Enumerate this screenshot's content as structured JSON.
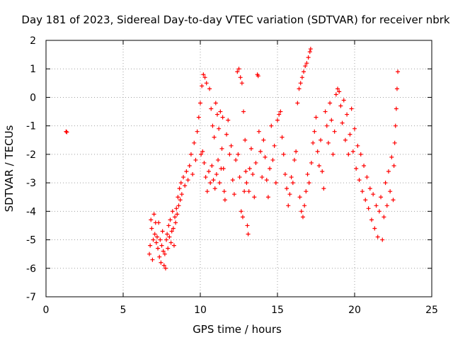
{
  "chart_data": {
    "type": "scatter",
    "title": "Day 181 of 2023, Sidereal Day-to-day VTEC variation (SDTVAR) for receiver nbrk",
    "xlabel": "GPS time / hours",
    "ylabel": "SDTVAR / TECUs",
    "xlim": [
      0,
      25
    ],
    "ylim": [
      -7,
      2
    ],
    "xticks": [
      "0",
      "5",
      "10",
      "15",
      "20",
      "25"
    ],
    "yticks": [
      "-7",
      "-6",
      "-5",
      "-4",
      "-3",
      "-2",
      "-1",
      "0",
      "1",
      "2"
    ],
    "grid": true,
    "marker": "plus",
    "color": "#ff0000",
    "series": [
      {
        "name": "SDTVAR",
        "points": [
          [
            1.3,
            -1.2
          ],
          [
            1.35,
            -1.22
          ],
          [
            6.7,
            -5.5
          ],
          [
            6.75,
            -5.2
          ],
          [
            6.8,
            -4.3
          ],
          [
            6.85,
            -4.6
          ],
          [
            6.9,
            -5.7
          ],
          [
            6.95,
            -5.0
          ],
          [
            7.0,
            -4.1
          ],
          [
            7.05,
            -4.8
          ],
          [
            7.1,
            -4.4
          ],
          [
            7.15,
            -5.1
          ],
          [
            7.2,
            -4.9
          ],
          [
            7.25,
            -5.3
          ],
          [
            7.3,
            -4.4
          ],
          [
            7.35,
            -5.6
          ],
          [
            7.4,
            -5.0
          ],
          [
            7.45,
            -5.8
          ],
          [
            7.5,
            -5.2
          ],
          [
            7.55,
            -4.7
          ],
          [
            7.6,
            -5.4
          ],
          [
            7.65,
            -5.9
          ],
          [
            7.7,
            -5.5
          ],
          [
            7.75,
            -6.0
          ],
          [
            7.8,
            -5.0
          ],
          [
            7.85,
            -4.8
          ],
          [
            7.9,
            -5.3
          ],
          [
            7.95,
            -4.5
          ],
          [
            8.0,
            -4.9
          ],
          [
            8.05,
            -4.3
          ],
          [
            8.1,
            -5.1
          ],
          [
            8.15,
            -4.7
          ],
          [
            8.2,
            -4.0
          ],
          [
            8.25,
            -4.6
          ],
          [
            8.3,
            -5.2
          ],
          [
            8.35,
            -4.2
          ],
          [
            8.4,
            -4.4
          ],
          [
            8.45,
            -3.9
          ],
          [
            8.5,
            -4.1
          ],
          [
            8.55,
            -3.5
          ],
          [
            8.6,
            -3.8
          ],
          [
            8.65,
            -3.2
          ],
          [
            8.7,
            -3.6
          ],
          [
            8.75,
            -3.0
          ],
          [
            8.8,
            -3.4
          ],
          [
            8.9,
            -2.8
          ],
          [
            9.0,
            -3.1
          ],
          [
            9.1,
            -2.6
          ],
          [
            9.2,
            -2.9
          ],
          [
            9.3,
            -2.4
          ],
          [
            9.4,
            -2.0
          ],
          [
            9.5,
            -2.7
          ],
          [
            9.6,
            -1.6
          ],
          [
            9.7,
            -2.2
          ],
          [
            9.8,
            -1.2
          ],
          [
            9.9,
            -0.7
          ],
          [
            10.0,
            -0.2
          ],
          [
            10.1,
            0.4
          ],
          [
            10.2,
            0.8
          ],
          [
            10.3,
            0.7
          ],
          [
            10.4,
            0.5
          ],
          [
            10.05,
            -2.0
          ],
          [
            10.15,
            -1.9
          ],
          [
            10.25,
            -2.3
          ],
          [
            10.35,
            -2.8
          ],
          [
            10.45,
            -3.3
          ],
          [
            10.55,
            -2.6
          ],
          [
            10.65,
            -3.0
          ],
          [
            10.75,
            -2.4
          ],
          [
            10.85,
            -2.9
          ],
          [
            10.95,
            -3.2
          ],
          [
            11.05,
            -2.7
          ],
          [
            11.15,
            -2.2
          ],
          [
            11.25,
            -3.0
          ],
          [
            11.35,
            -2.5
          ],
          [
            10.6,
            0.3
          ],
          [
            10.7,
            -0.4
          ],
          [
            10.8,
            -1.0
          ],
          [
            10.9,
            -1.4
          ],
          [
            11.0,
            -0.2
          ],
          [
            11.1,
            -0.6
          ],
          [
            11.2,
            -1.1
          ],
          [
            11.3,
            -0.5
          ],
          [
            11.4,
            -1.8
          ],
          [
            11.45,
            -0.7
          ],
          [
            11.5,
            -2.5
          ],
          [
            11.55,
            -3.3
          ],
          [
            11.6,
            -3.6
          ],
          [
            11.7,
            -1.3
          ],
          [
            11.8,
            -0.8
          ],
          [
            11.9,
            -2.0
          ],
          [
            12.0,
            -1.7
          ],
          [
            12.1,
            -2.9
          ],
          [
            12.2,
            -3.4
          ],
          [
            12.3,
            -2.2
          ],
          [
            12.4,
            0.9
          ],
          [
            12.5,
            1.0
          ],
          [
            12.6,
            0.7
          ],
          [
            12.7,
            0.5
          ],
          [
            12.8,
            -0.5
          ],
          [
            12.9,
            -1.5
          ],
          [
            12.45,
            -2.0
          ],
          [
            12.55,
            -2.8
          ],
          [
            12.65,
            -4.0
          ],
          [
            12.75,
            -4.2
          ],
          [
            12.85,
            -3.3
          ],
          [
            12.95,
            -2.6
          ],
          [
            13.0,
            -3.0
          ],
          [
            13.05,
            -4.5
          ],
          [
            13.1,
            -4.8
          ],
          [
            13.15,
            -3.3
          ],
          [
            13.2,
            -2.5
          ],
          [
            13.3,
            -1.8
          ],
          [
            13.4,
            -2.7
          ],
          [
            13.5,
            -3.5
          ],
          [
            13.6,
            -2.3
          ],
          [
            13.7,
            0.8
          ],
          [
            13.75,
            0.75
          ],
          [
            13.8,
            -1.2
          ],
          [
            13.9,
            -1.9
          ],
          [
            14.0,
            -2.8
          ],
          [
            14.1,
            -1.5
          ],
          [
            14.2,
            -2.1
          ],
          [
            14.3,
            -2.9
          ],
          [
            14.4,
            -3.5
          ],
          [
            14.5,
            -2.5
          ],
          [
            14.6,
            -1.0
          ],
          [
            14.7,
            -2.2
          ],
          [
            14.8,
            -1.7
          ],
          [
            14.9,
            -3.0
          ],
          [
            15.0,
            -0.8
          ],
          [
            15.1,
            -0.6
          ],
          [
            15.2,
            -0.5
          ],
          [
            15.3,
            -1.4
          ],
          [
            15.4,
            -2.0
          ],
          [
            15.5,
            -2.7
          ],
          [
            15.6,
            -3.2
          ],
          [
            15.7,
            -3.8
          ],
          [
            15.8,
            -3.4
          ],
          [
            15.9,
            -2.8
          ],
          [
            16.0,
            -3.0
          ],
          [
            16.1,
            -2.2
          ],
          [
            16.2,
            -1.9
          ],
          [
            16.3,
            -0.2
          ],
          [
            16.4,
            0.3
          ],
          [
            16.5,
            0.5
          ],
          [
            16.6,
            0.7
          ],
          [
            16.7,
            0.9
          ],
          [
            16.8,
            1.1
          ],
          [
            16.9,
            1.2
          ],
          [
            17.0,
            1.4
          ],
          [
            17.1,
            1.6
          ],
          [
            17.15,
            1.7
          ],
          [
            16.45,
            -3.5
          ],
          [
            16.55,
            -4.0
          ],
          [
            16.65,
            -4.2
          ],
          [
            16.75,
            -3.8
          ],
          [
            16.85,
            -3.3
          ],
          [
            16.95,
            -2.7
          ],
          [
            17.05,
            -3.0
          ],
          [
            17.2,
            -2.3
          ],
          [
            17.3,
            -1.6
          ],
          [
            17.4,
            -1.2
          ],
          [
            17.5,
            -0.7
          ],
          [
            17.6,
            -1.9
          ],
          [
            17.7,
            -2.4
          ],
          [
            17.8,
            -1.5
          ],
          [
            17.9,
            -2.6
          ],
          [
            18.0,
            -3.2
          ],
          [
            18.1,
            -0.5
          ],
          [
            18.2,
            -1.0
          ],
          [
            18.3,
            -1.6
          ],
          [
            18.4,
            -0.2
          ],
          [
            18.5,
            -0.8
          ],
          [
            18.6,
            -2.0
          ],
          [
            18.7,
            -1.2
          ],
          [
            18.8,
            0.1
          ],
          [
            18.9,
            0.3
          ],
          [
            19.0,
            0.2
          ],
          [
            19.1,
            -0.3
          ],
          [
            19.2,
            -0.9
          ],
          [
            19.3,
            -0.1
          ],
          [
            19.4,
            -1.5
          ],
          [
            19.5,
            -0.6
          ],
          [
            19.6,
            -2.0
          ],
          [
            19.7,
            -1.3
          ],
          [
            19.8,
            -0.4
          ],
          [
            19.9,
            -1.9
          ],
          [
            20.0,
            -1.1
          ],
          [
            20.1,
            -2.5
          ],
          [
            20.2,
            -1.7
          ],
          [
            20.3,
            -2.9
          ],
          [
            20.4,
            -2.0
          ],
          [
            20.5,
            -3.3
          ],
          [
            20.6,
            -2.4
          ],
          [
            20.7,
            -3.6
          ],
          [
            20.8,
            -2.8
          ],
          [
            20.9,
            -3.9
          ],
          [
            21.0,
            -3.2
          ],
          [
            21.1,
            -4.3
          ],
          [
            21.2,
            -3.4
          ],
          [
            21.3,
            -4.6
          ],
          [
            21.4,
            -3.8
          ],
          [
            21.5,
            -4.9
          ],
          [
            21.6,
            -4.0
          ],
          [
            21.7,
            -3.5
          ],
          [
            21.8,
            -5.0
          ],
          [
            21.9,
            -4.2
          ],
          [
            22.0,
            -3.0
          ],
          [
            22.1,
            -3.8
          ],
          [
            22.2,
            -2.6
          ],
          [
            22.3,
            -3.3
          ],
          [
            22.4,
            -2.1
          ],
          [
            22.5,
            -3.6
          ],
          [
            22.55,
            -2.4
          ],
          [
            22.6,
            -1.6
          ],
          [
            22.65,
            -1.0
          ],
          [
            22.7,
            -0.4
          ],
          [
            22.75,
            0.3
          ],
          [
            22.8,
            0.9
          ]
        ]
      }
    ]
  }
}
